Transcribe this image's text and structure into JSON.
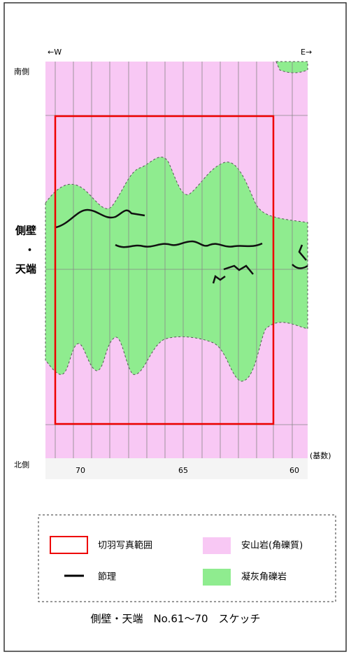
{
  "direction": {
    "west": "←W",
    "east": "E→"
  },
  "side": {
    "south": "南側",
    "north": "北側"
  },
  "section_label": [
    "側壁",
    "・",
    "天端"
  ],
  "x_axis": {
    "unit": "(基数)",
    "ticks": [
      "70",
      "65",
      "60"
    ]
  },
  "legend": {
    "photo_range": "切羽写真範囲",
    "joint": "節理",
    "andesite": "安山岩(角礫質)",
    "tuff_breccia": "凝灰角礫岩"
  },
  "caption": "側壁・天端　No.61～70　スケッチ"
}
